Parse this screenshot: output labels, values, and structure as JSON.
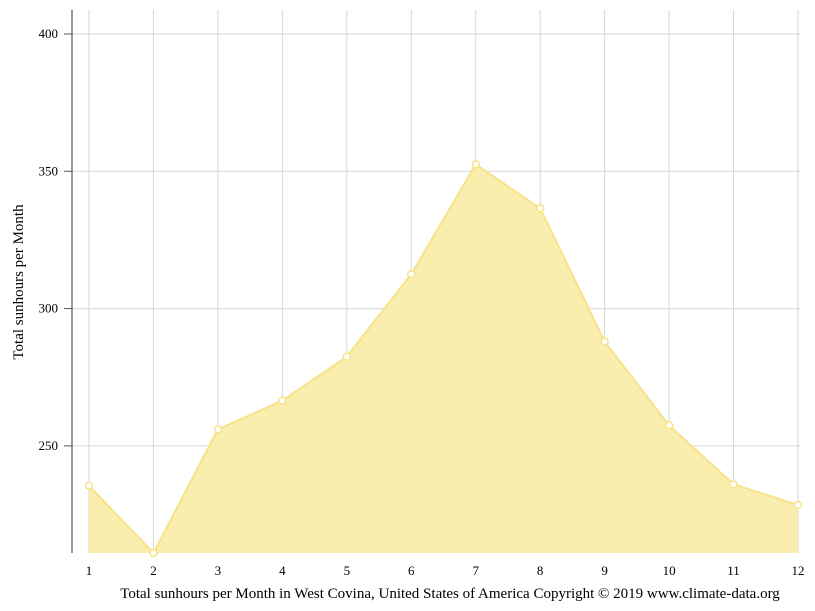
{
  "chart_data": {
    "type": "area",
    "title": "",
    "xlabel": "",
    "ylabel": "Total sunhours per Month",
    "caption": "Total sunhours per Month in West Covina, United States of America Copyright © 2019 www.climate-data.org",
    "x": [
      1,
      2,
      3,
      4,
      5,
      6,
      7,
      8,
      9,
      10,
      11,
      12
    ],
    "x_tick_labels": [
      "1",
      "2",
      "3",
      "4",
      "5",
      "6",
      "7",
      "8",
      "9",
      "10",
      "11",
      "12"
    ],
    "y_tick_values": [
      250,
      300,
      350,
      400
    ],
    "y_tick_labels": [
      "250",
      "300",
      "350",
      "400"
    ],
    "ylim": [
      211,
      404
    ],
    "grid": true,
    "legend": "none",
    "series": [
      {
        "values": [
          235.5,
          211,
          256,
          266.5,
          282.5,
          312.5,
          352.5,
          336.5,
          288,
          257.5,
          236,
          228.5
        ],
        "fill_color": "#faedaa",
        "line_color": "#f7e387",
        "marker_fill": "#ffffff"
      }
    ],
    "grid_color": "#d6d6d6",
    "axis_color": "#555555"
  }
}
